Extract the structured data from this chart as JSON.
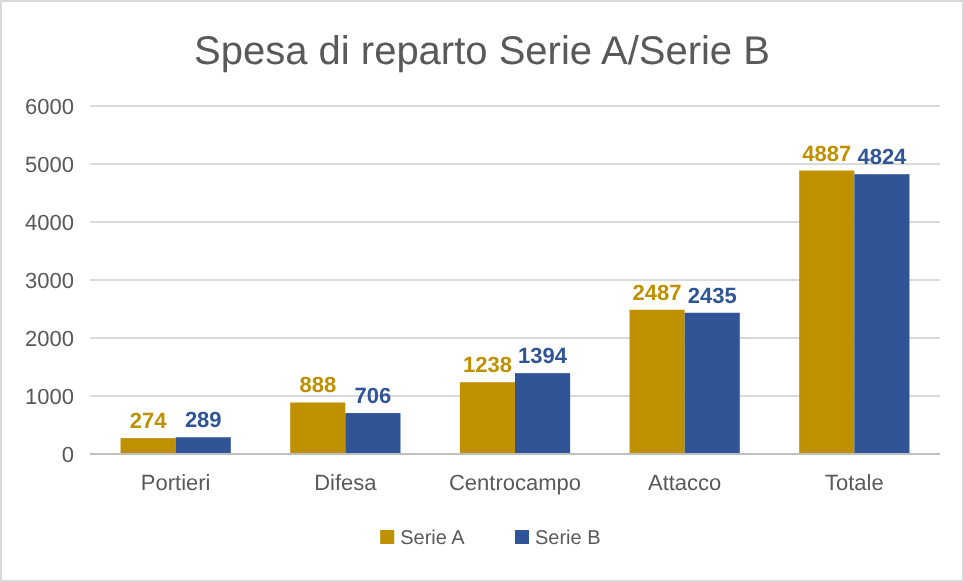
{
  "chart_data": {
    "type": "bar",
    "title": "Spesa di reparto Serie A/Serie B",
    "categories": [
      "Portieri",
      "Difesa",
      "Centrocampo",
      "Attacco",
      "Totale"
    ],
    "series": [
      {
        "name": "Serie A",
        "color": "#bf9000",
        "values": [
          274,
          888,
          1238,
          2487,
          4887
        ]
      },
      {
        "name": "Serie B",
        "color": "#2f5597",
        "values": [
          289,
          706,
          1394,
          2435,
          4824
        ]
      }
    ],
    "ylim": [
      0,
      6000
    ],
    "yticks": [
      0,
      1000,
      2000,
      3000,
      4000,
      5000,
      6000
    ],
    "grid": "y",
    "legend": "bottom",
    "data_labels": true
  }
}
